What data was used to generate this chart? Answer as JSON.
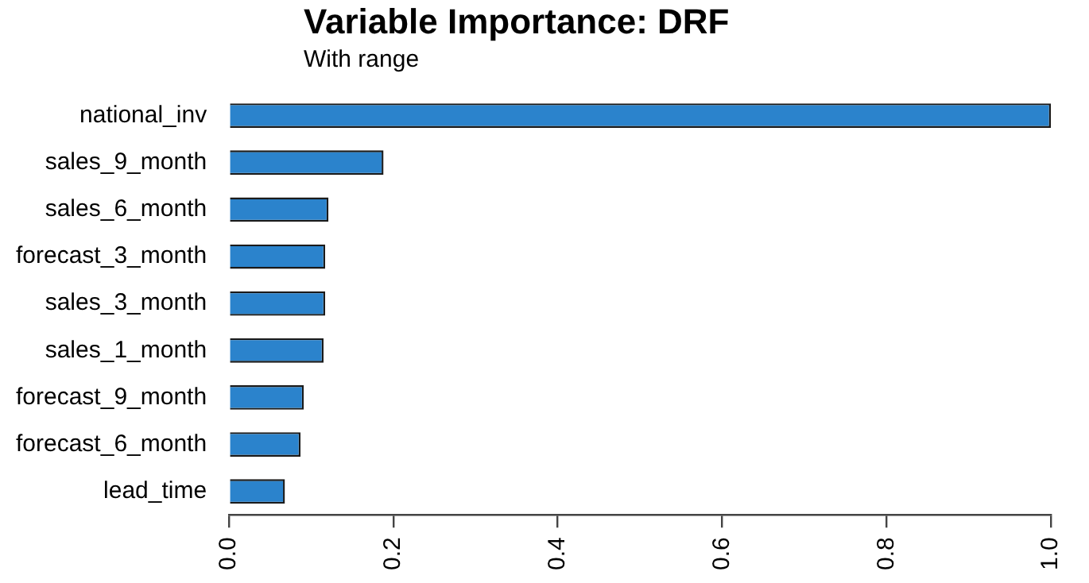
{
  "chart_data": {
    "type": "bar",
    "orientation": "horizontal",
    "title": "Variable Importance: DRF",
    "subtitle": "With range",
    "categories": [
      "national_inv",
      "sales_9_month",
      "sales_6_month",
      "forecast_3_month",
      "sales_3_month",
      "sales_1_month",
      "forecast_9_month",
      "forecast_6_month",
      "lead_time"
    ],
    "values": [
      1.0,
      0.188,
      0.121,
      0.117,
      0.117,
      0.115,
      0.091,
      0.087,
      0.068
    ],
    "color": "#2b83cc",
    "xlim": [
      0,
      1
    ],
    "xticks": [
      {
        "value": 0,
        "label": "0.0"
      },
      {
        "value": 0.2,
        "label": "0.2"
      },
      {
        "value": 0.4,
        "label": "0.4"
      },
      {
        "value": 0.6,
        "label": "0.6"
      },
      {
        "value": 0.8,
        "label": "0.8"
      },
      {
        "value": 1,
        "label": "1.0"
      }
    ],
    "grid": false,
    "legend": false
  }
}
